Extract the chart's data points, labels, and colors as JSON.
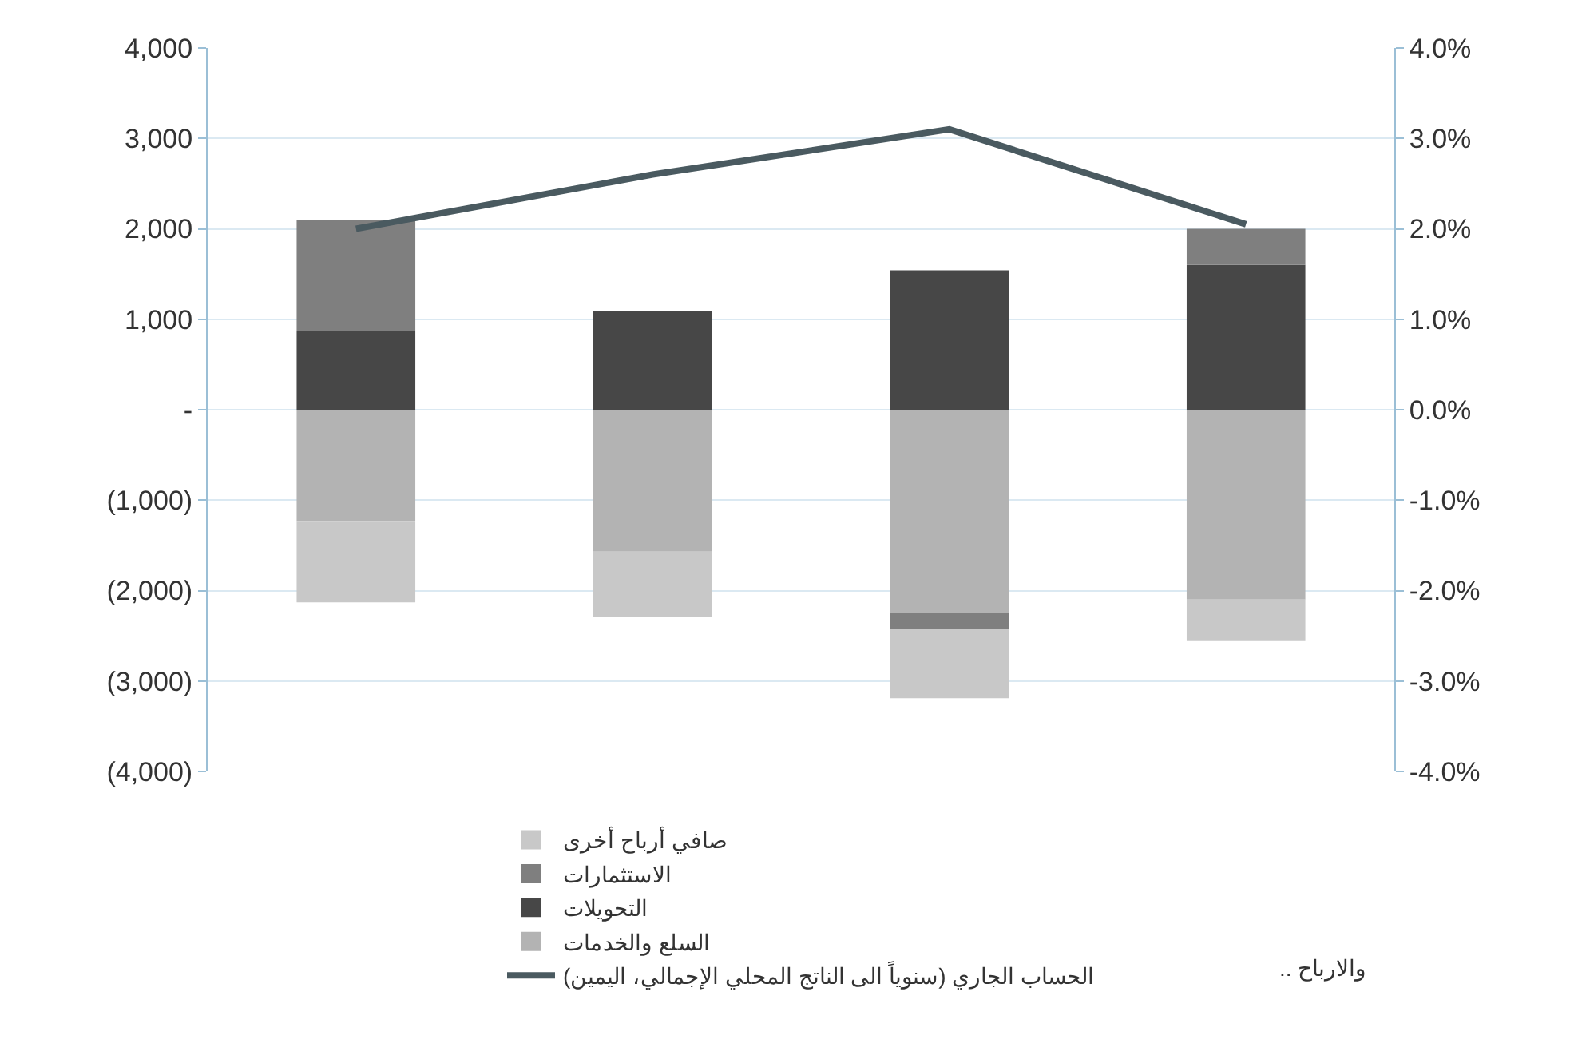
{
  "chart_data": {
    "type": "bar",
    "stacked": true,
    "categories": [
      null,
      null,
      null,
      null
    ],
    "series": [
      {
        "name": "السلع والخدمات",
        "color": "#b3b3b3",
        "values": [
          -1230,
          -1570,
          -2250,
          -2100
        ]
      },
      {
        "name": "التحويلات",
        "color": "#474747",
        "values": [
          870,
          1090,
          1540,
          1600
        ]
      },
      {
        "name": "الاستثمارات",
        "color": "#7f7f7f",
        "values": [
          1230,
          null,
          -170,
          400
        ]
      },
      {
        "name": "صافي أرباح أخرى",
        "color": "#c8c8c8",
        "values": [
          -900,
          -720,
          -770,
          -450
        ]
      },
      {
        "name": "الحساب الجاري (سنوياً الى الناتج المحلي الإجمالي، اليمين)",
        "type": "line",
        "axis": "y2",
        "color": "#4a5a60",
        "values": [
          2.0,
          2.6,
          3.1,
          2.05
        ]
      }
    ],
    "ylim": [
      -4000,
      4000
    ],
    "yticks": [
      {
        "value": -4000,
        "label": "(4,000)"
      },
      {
        "value": -3000,
        "label": "(3,000)"
      },
      {
        "value": -2000,
        "label": "(2,000)"
      },
      {
        "value": -1000,
        "label": "(1,000)"
      },
      {
        "value": 0,
        "label": "-"
      },
      {
        "value": 1000,
        "label": "1,000"
      },
      {
        "value": 2000,
        "label": "2,000"
      },
      {
        "value": 3000,
        "label": "3,000"
      },
      {
        "value": 4000,
        "label": "4,000"
      }
    ],
    "y2lim": [
      -4,
      4
    ],
    "y2ticks": [
      {
        "value": -4,
        "label": "-4.0%"
      },
      {
        "value": -3,
        "label": "-3.0%"
      },
      {
        "value": -2,
        "label": "-2.0%"
      },
      {
        "value": -1,
        "label": "-1.0%"
      },
      {
        "value": 0,
        "label": "0.0%"
      },
      {
        "value": 1,
        "label": "1.0%"
      },
      {
        "value": 2,
        "label": "2.0%"
      },
      {
        "value": 3,
        "label": "3.0%"
      },
      {
        "value": 4,
        "label": "4.0%"
      }
    ],
    "grid": "y",
    "legend": "bottom",
    "marker": "none",
    "line_style": "solid",
    "annotations": [
      ".. والارباح"
    ]
  }
}
